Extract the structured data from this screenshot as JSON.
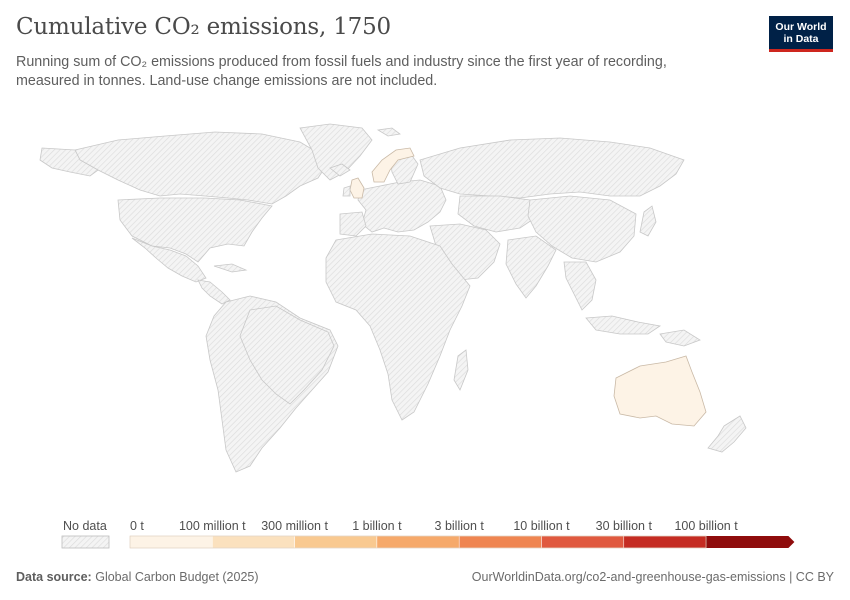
{
  "header": {
    "title": "Cumulative CO₂ emissions, 1750",
    "subtitle": "Running sum of CO₂ emissions produced from fossil fuels and industry since the first year of recording, measured in tonnes. Land-use change emissions are not included."
  },
  "logo": {
    "line1": "Our World",
    "line2": "in Data"
  },
  "legend": {
    "no_data_label": "No data",
    "labels": [
      "0 t",
      "100 million t",
      "300 million t",
      "1 billion t",
      "3 billion t",
      "10 billion t",
      "30 billion t",
      "100 billion t"
    ],
    "colors": [
      "#fdf3e6",
      "#fbe1be",
      "#f9c990",
      "#f6a96a",
      "#ef8551",
      "#e0593f",
      "#c52c22",
      "#8f0c0c"
    ]
  },
  "map": {
    "countries_with_data": [
      "United Kingdom",
      "Norway",
      "Australia"
    ],
    "data_color": "#fdf3e6",
    "no_data_style": "hatched grey"
  },
  "footer": {
    "source_label": "Data source:",
    "source_value": "Global Carbon Budget (2025)",
    "url": "OurWorldinData.org/co2-and-greenhouse-gas-emissions | CC BY"
  }
}
